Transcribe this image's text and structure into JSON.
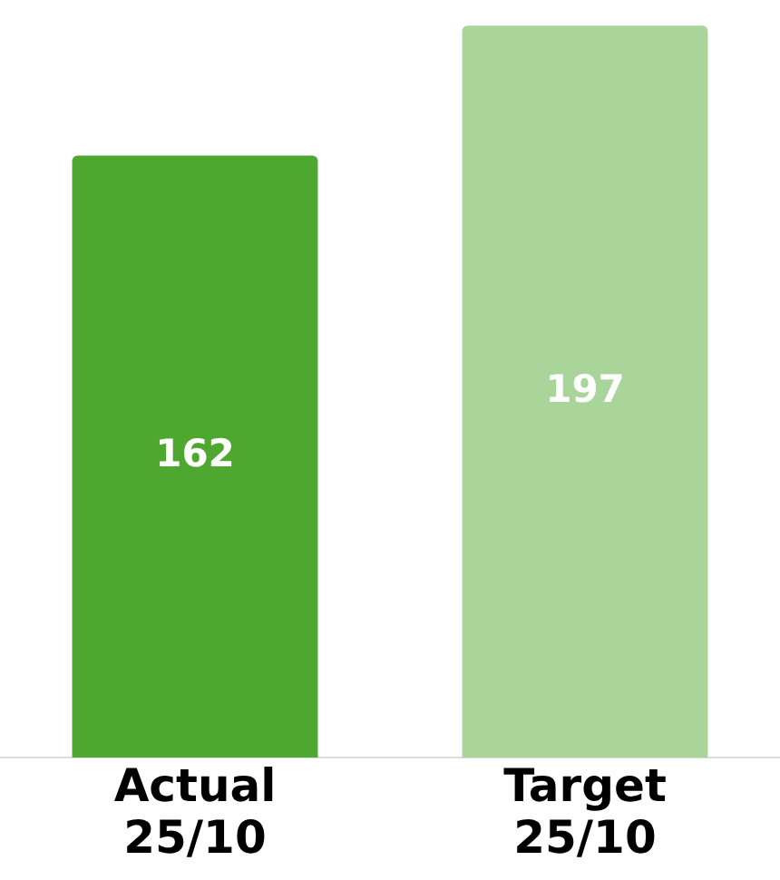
{
  "chart_data": {
    "type": "bar",
    "categories": [
      "Actual 25/10",
      "Target 25/10"
    ],
    "values": [
      162,
      197
    ],
    "colors": [
      "#4ea72e",
      "#a9d49a"
    ],
    "data_labels": true,
    "legend": false
  }
}
